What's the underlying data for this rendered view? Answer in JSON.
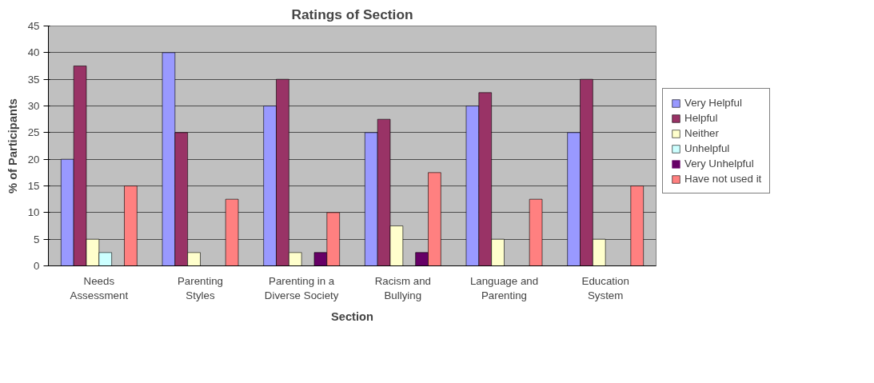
{
  "chart_data": {
    "type": "bar",
    "title": "Ratings of Section",
    "xlabel": "Section",
    "ylabel": "% of Participants",
    "categories": [
      "Needs Assessment",
      "Parenting Styles",
      "Parenting in a Diverse Society",
      "Racism and Bullying",
      "Language and Parenting",
      "Education System"
    ],
    "series": [
      {
        "name": "Very Helpful",
        "color": "#9999ff",
        "values": [
          20,
          40,
          30,
          25,
          30,
          25
        ]
      },
      {
        "name": "Helpful",
        "color": "#993366",
        "values": [
          37.5,
          25,
          35,
          27.5,
          32.5,
          35
        ]
      },
      {
        "name": "Neither",
        "color": "#ffffcc",
        "values": [
          5,
          2.5,
          2.5,
          7.5,
          5,
          5
        ]
      },
      {
        "name": "Unhelpful",
        "color": "#ccffff",
        "values": [
          2.5,
          0,
          0,
          0,
          0,
          0
        ]
      },
      {
        "name": "Very Unhelpful",
        "color": "#660066",
        "values": [
          0,
          0,
          2.5,
          2.5,
          0,
          0
        ]
      },
      {
        "name": "Have not used it",
        "color": "#ff8080",
        "values": [
          15,
          12.5,
          10,
          17.5,
          12.5,
          15
        ]
      }
    ],
    "ylim": [
      0,
      45
    ],
    "yticks": [
      0,
      5,
      10,
      15,
      20,
      25,
      30,
      35,
      40,
      45
    ],
    "grid": "y",
    "legend": "right"
  }
}
